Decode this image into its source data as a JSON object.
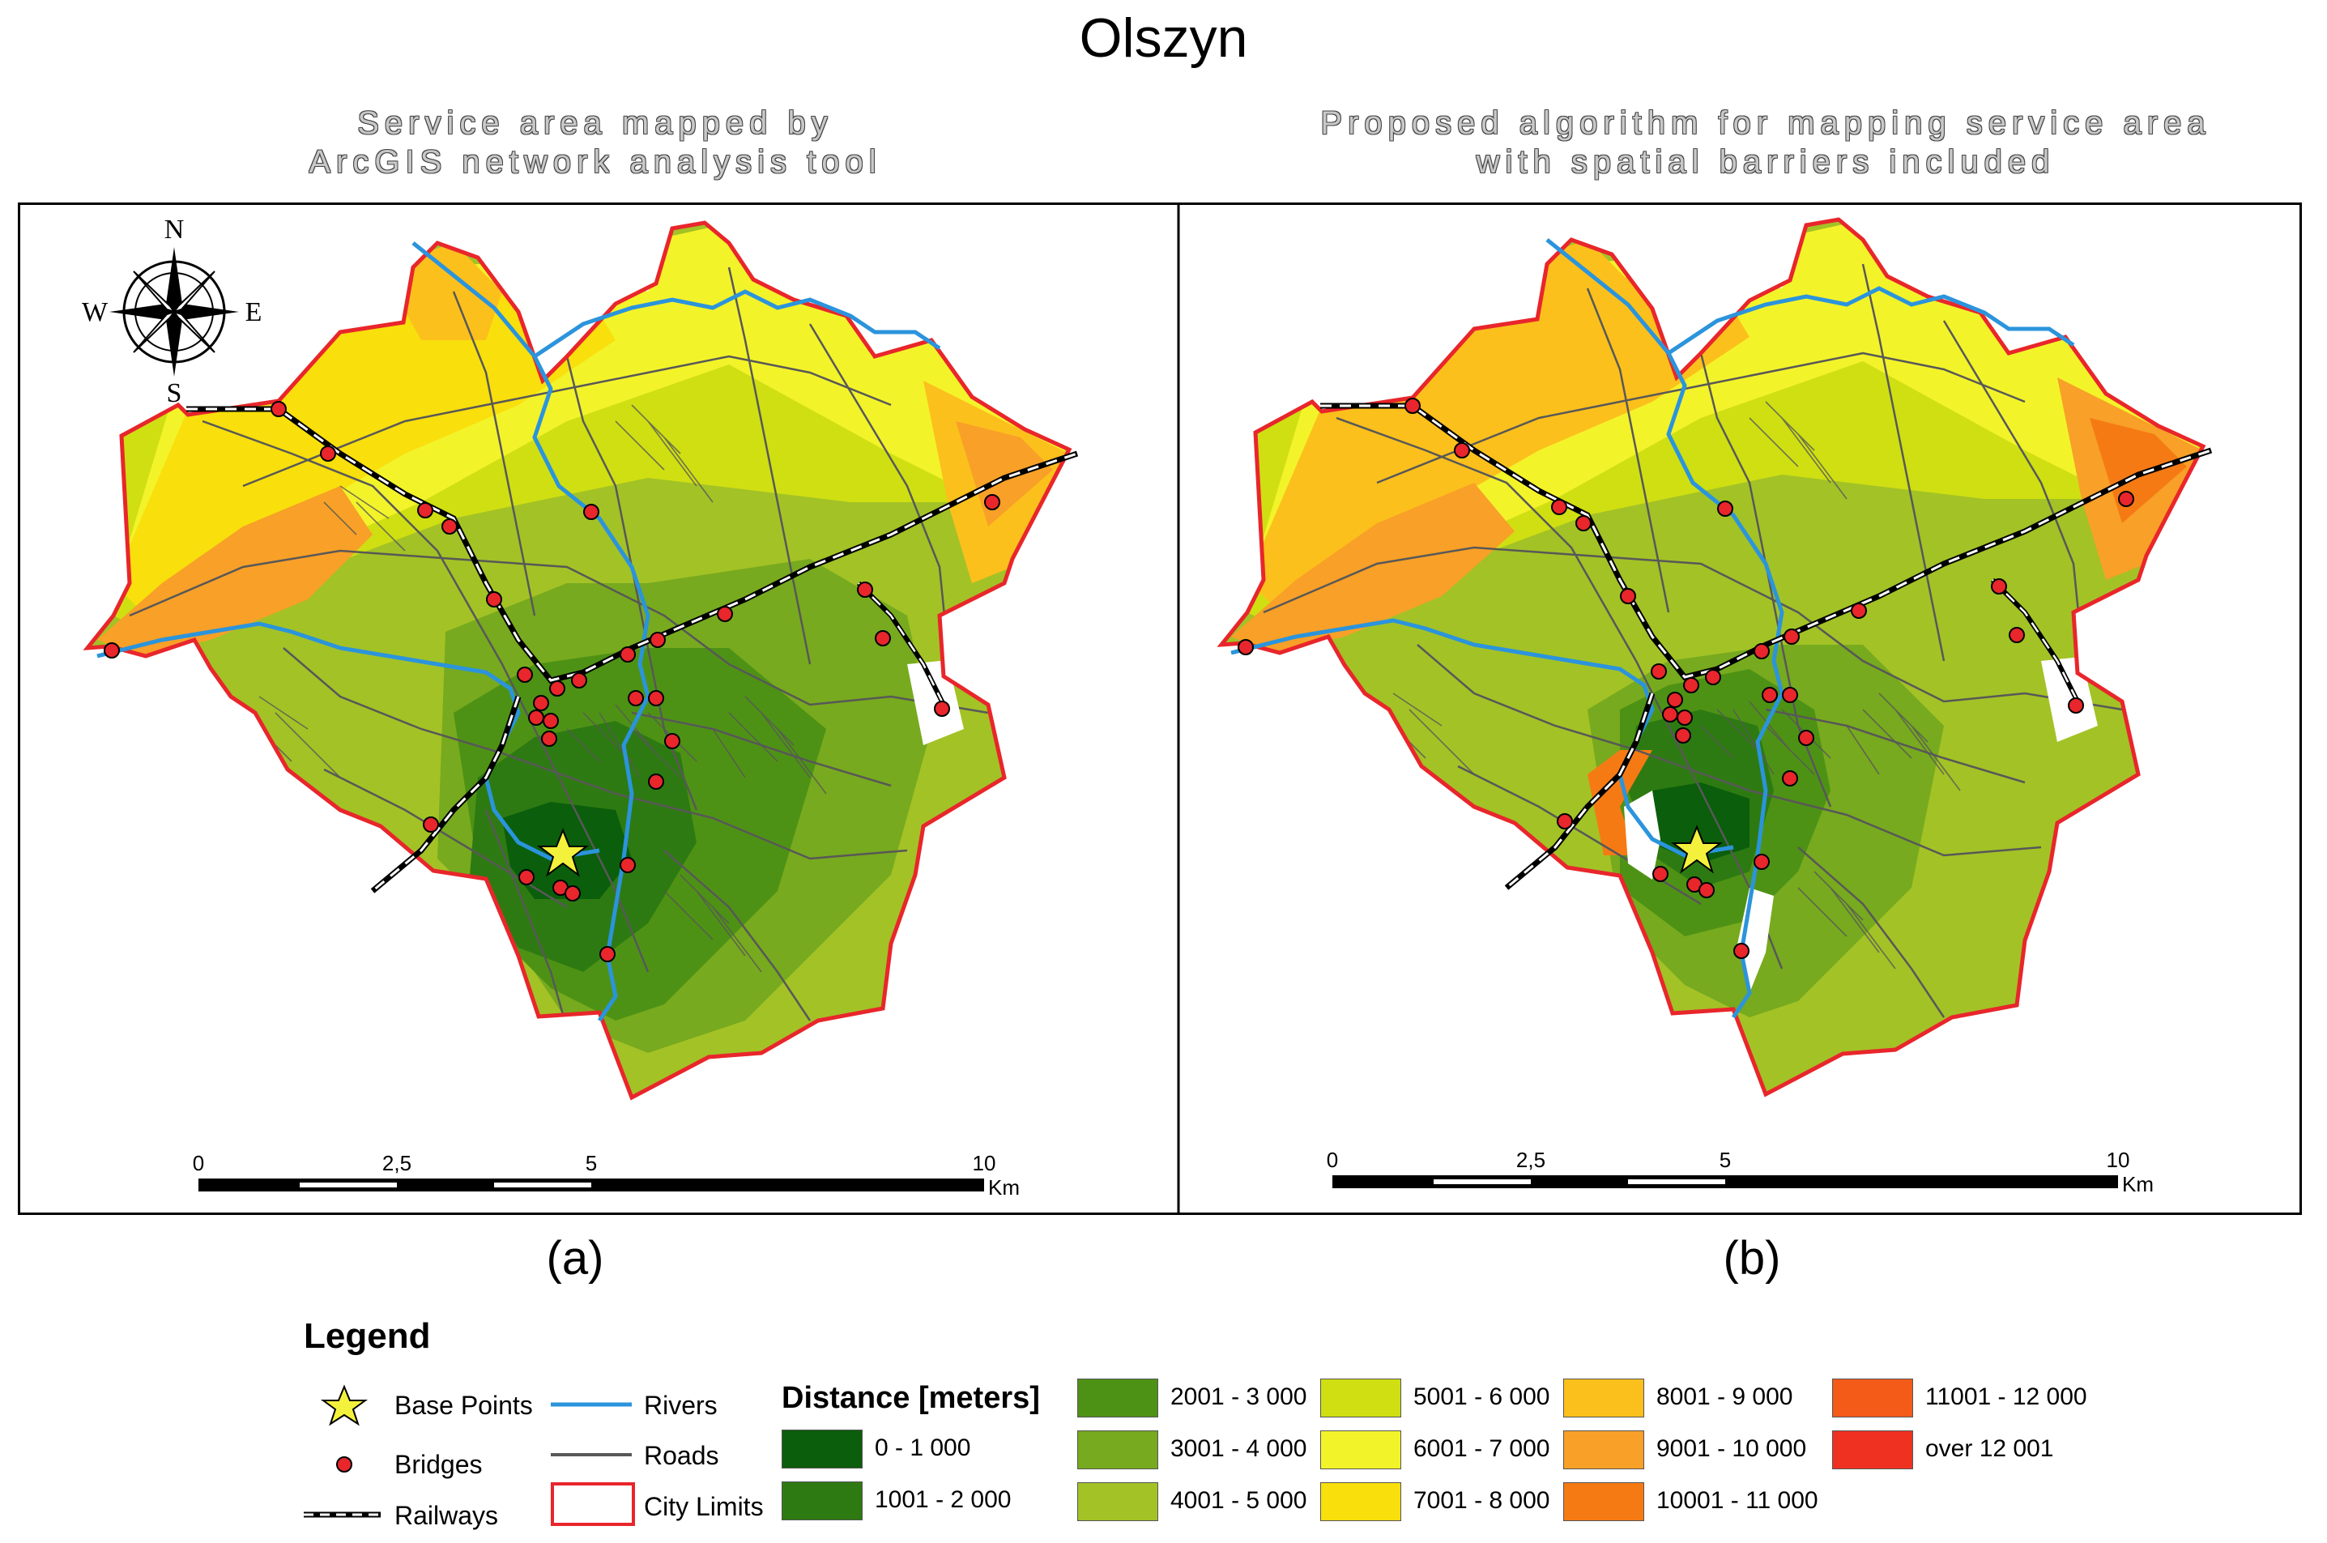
{
  "title": "Olszyn",
  "subtitles": {
    "a": [
      "Service area mapped by",
      "ArcGIS network analysis tool"
    ],
    "b": [
      "Proposed algorithm for mapping service area",
      "with spatial barriers included"
    ]
  },
  "captions": {
    "a": "(a)",
    "b": "(b)"
  },
  "compass": {
    "n": "N",
    "s": "S",
    "e": "E",
    "w": "W"
  },
  "scalebar": {
    "labels": [
      "0",
      "2,5",
      "5",
      "10"
    ],
    "unit": "Km"
  },
  "legend": {
    "title": "Legend",
    "symbols": {
      "base_points": "Base Points",
      "bridges": "Bridges",
      "railways": "Railways",
      "rivers": "Rivers",
      "roads": "Roads",
      "city_limits": "City Limits"
    },
    "distance_title": "Distance [meters]",
    "classes": [
      {
        "label": "0 - 1 000",
        "color": "#0b5e0b"
      },
      {
        "label": "1001 - 2 000",
        "color": "#2e7a12"
      },
      {
        "label": "2001 - 3 000",
        "color": "#4e9215"
      },
      {
        "label": "3001 - 4 000",
        "color": "#77aa1e"
      },
      {
        "label": "4001 - 5 000",
        "color": "#a3c226"
      },
      {
        "label": "5001 - 6 000",
        "color": "#cfdf12"
      },
      {
        "label": "6001 - 7 000",
        "color": "#f3f32a"
      },
      {
        "label": "7001 - 8 000",
        "color": "#f9df0c"
      },
      {
        "label": "8001 - 9 000",
        "color": "#fcc01c"
      },
      {
        "label": "9001 - 10 000",
        "color": "#f8a027"
      },
      {
        "label": "10001 - 11 000",
        "color": "#f57a14"
      },
      {
        "label": "11001 - 12 000",
        "color": "#f45a18"
      },
      {
        "label": "over 12 001",
        "color": "#ef3122"
      }
    ]
  },
  "colors": {
    "river": "#2b94dc",
    "road": "#585858",
    "city_limits": "#e8262b",
    "bridge": "#e8262b",
    "base_point": "#f4f13c"
  }
}
